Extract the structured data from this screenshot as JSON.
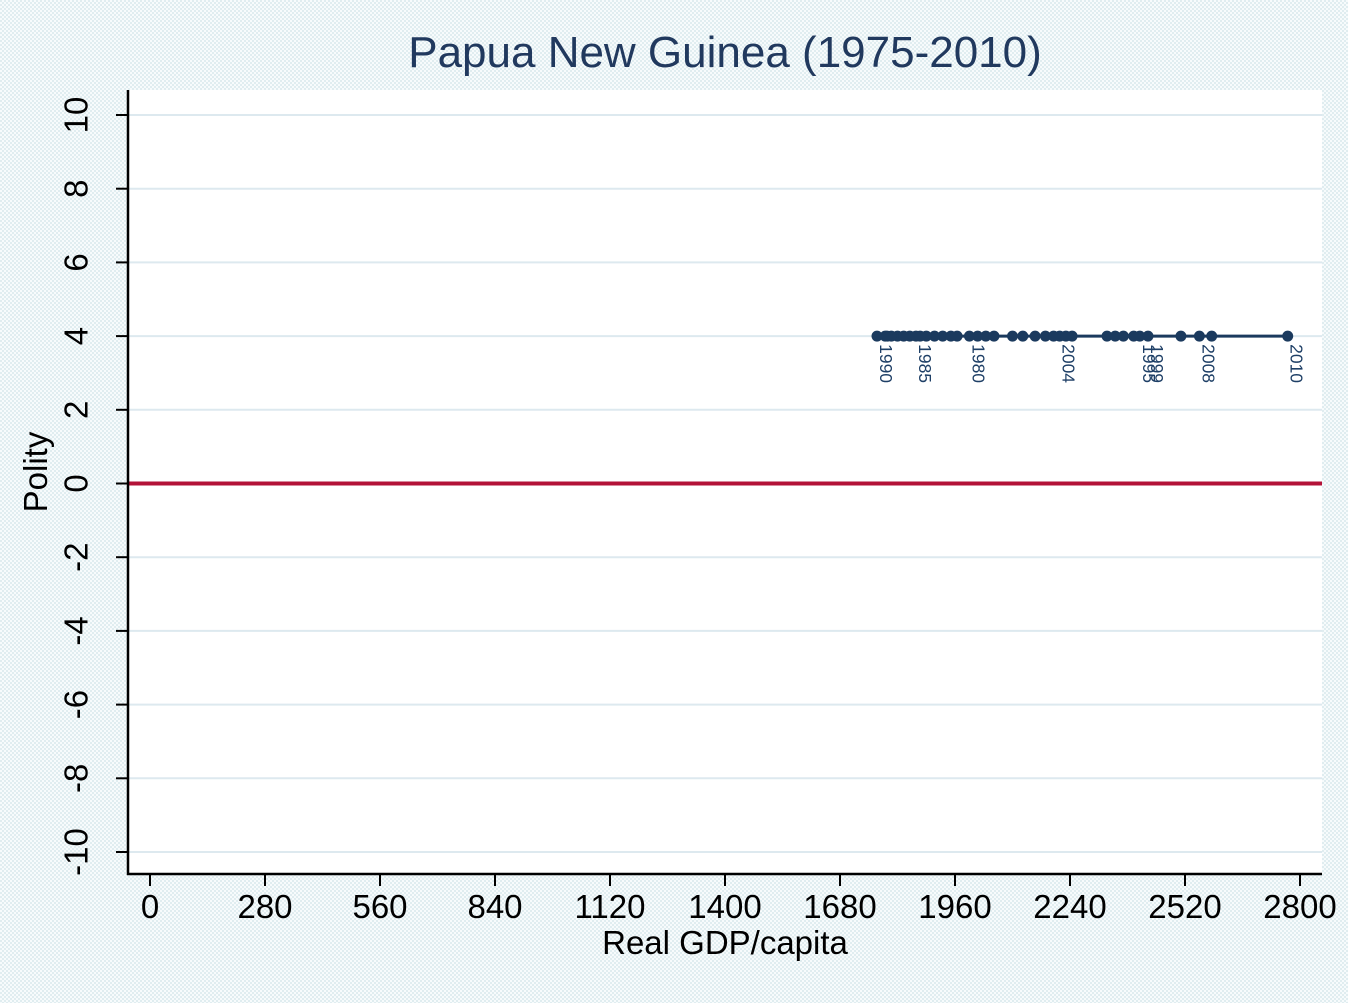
{
  "chart_data": {
    "type": "line",
    "title": "Papua New Guinea (1975-2010)",
    "xlabel": "Real GDP/capita",
    "ylabel": "Polity",
    "x_ticks": [
      0,
      280,
      560,
      840,
      1120,
      1400,
      1680,
      1960,
      2240,
      2520,
      2800
    ],
    "y_ticks": [
      10,
      8,
      6,
      4,
      2,
      0,
      -2,
      -4,
      -6,
      -8,
      -10
    ],
    "xlim": [
      -55,
      2880
    ],
    "ylim": [
      -10.7,
      10.7
    ],
    "grid": "horizontal-only",
    "legend": "none",
    "reference_line": {
      "y": 0,
      "color": "#b31238"
    },
    "marker_labels": {
      "field": "year",
      "labeled_years": [
        1980,
        1985,
        1990,
        1995,
        1999,
        2004,
        2008,
        2010
      ],
      "rotation_deg": 90
    },
    "series": [
      {
        "name": "Polity vs Real GDP/capita (connected by year)",
        "points": [
          {
            "year": 1975,
            "gdp": 1930,
            "polity": 4
          },
          {
            "year": 1976,
            "gdp": 1965,
            "polity": 4
          },
          {
            "year": 1977,
            "gdp": 2035,
            "polity": 4
          },
          {
            "year": 1978,
            "gdp": 2055,
            "polity": 4
          },
          {
            "year": 1979,
            "gdp": 2015,
            "polity": 4
          },
          {
            "year": 1980,
            "gdp": 1995,
            "polity": 4
          },
          {
            "year": 1981,
            "gdp": 1950,
            "polity": 4
          },
          {
            "year": 1982,
            "gdp": 1910,
            "polity": 4
          },
          {
            "year": 1983,
            "gdp": 1890,
            "polity": 4
          },
          {
            "year": 1984,
            "gdp": 1850,
            "polity": 4
          },
          {
            "year": 1985,
            "gdp": 1865,
            "polity": 4
          },
          {
            "year": 1986,
            "gdp": 1820,
            "polity": 4
          },
          {
            "year": 1987,
            "gdp": 1835,
            "polity": 4
          },
          {
            "year": 1988,
            "gdp": 1805,
            "polity": 4
          },
          {
            "year": 1989,
            "gdp": 1790,
            "polity": 4
          },
          {
            "year": 1990,
            "gdp": 1770,
            "polity": 4
          },
          {
            "year": 1991,
            "gdp": 1795,
            "polity": 4
          },
          {
            "year": 1992,
            "gdp": 1875,
            "polity": 4
          },
          {
            "year": 1993,
            "gdp": 2100,
            "polity": 4
          },
          {
            "year": 1994,
            "gdp": 2330,
            "polity": 4
          },
          {
            "year": 1995,
            "gdp": 2410,
            "polity": 4
          },
          {
            "year": 1996,
            "gdp": 2370,
            "polity": 4
          },
          {
            "year": 1997,
            "gdp": 2245,
            "polity": 4
          },
          {
            "year": 1998,
            "gdp": 2350,
            "polity": 4
          },
          {
            "year": 1999,
            "gdp": 2430,
            "polity": 4
          },
          {
            "year": 2000,
            "gdp": 2395,
            "polity": 4
          },
          {
            "year": 2001,
            "gdp": 2180,
            "polity": 4
          },
          {
            "year": 2002,
            "gdp": 2125,
            "polity": 4
          },
          {
            "year": 2003,
            "gdp": 2155,
            "polity": 4
          },
          {
            "year": 2004,
            "gdp": 2215,
            "polity": 4
          },
          {
            "year": 2005,
            "gdp": 2200,
            "polity": 4
          },
          {
            "year": 2006,
            "gdp": 2230,
            "polity": 4
          },
          {
            "year": 2007,
            "gdp": 2510,
            "polity": 4
          },
          {
            "year": 2008,
            "gdp": 2555,
            "polity": 4
          },
          {
            "year": 2009,
            "gdp": 2585,
            "polity": 4
          },
          {
            "year": 2010,
            "gdp": 2770,
            "polity": 4
          }
        ]
      }
    ],
    "colors": {
      "marker": "#1b3a5e",
      "line": "#1b3a5e",
      "year_label": "#1e3f66",
      "reference": "#b31238",
      "grid": "#dde9ef",
      "axis": "#000000",
      "text": "#000000",
      "title": "#21395e",
      "plot_bg": "#ffffff",
      "background": "#e9f1f3"
    }
  }
}
